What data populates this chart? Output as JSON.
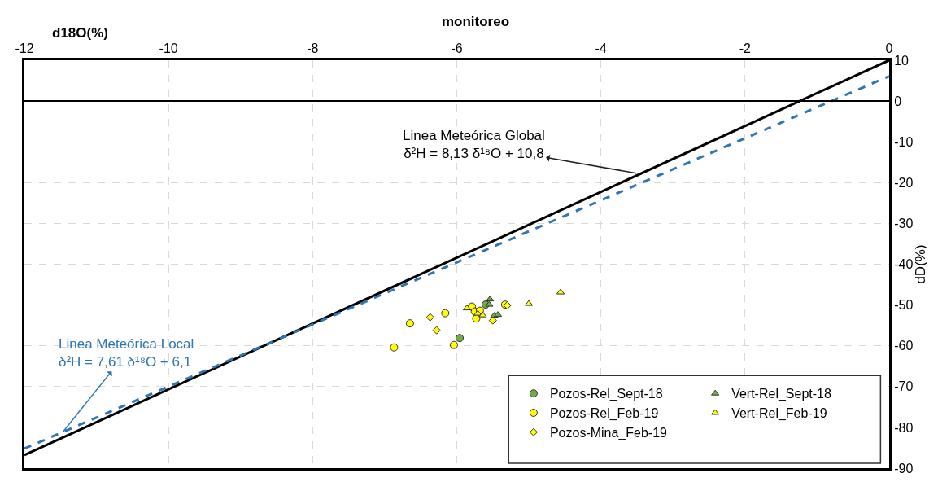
{
  "chart_data": {
    "type": "scatter",
    "title": "monitoreo",
    "xlabel": "d18O(%)",
    "ylabel": "dD(%)",
    "xlim": [
      -12,
      0
    ],
    "xticks": [
      -12,
      -10,
      -8,
      -6,
      -4,
      -2,
      0
    ],
    "ylim": [
      -90,
      10
    ],
    "yticks": [
      -90,
      -80,
      -70,
      -60,
      -50,
      -40,
      -30,
      -20,
      -10,
      0,
      10
    ],
    "grid": true,
    "legend": "bottom right",
    "series": [
      {
        "name": "Pozos-Rel_Sept-18",
        "marker": "circle",
        "color": "#70ad47",
        "x": [
          -5.96,
          -5.6
        ],
        "values": [
          -58.1,
          -49.9
        ]
      },
      {
        "name": "Vert-Rel_Sept-18",
        "marker": "triangle",
        "color": "#70ad47",
        "x": [
          -5.54,
          -5.55,
          -5.48,
          -5.43
        ],
        "values": [
          -48.6,
          -49.9,
          -52.6,
          -52.4
        ]
      },
      {
        "name": "Pozos-Rel_Feb-19",
        "marker": "circle",
        "color": "#ffff00",
        "x": [
          -6.87,
          -6.65,
          -6.16,
          -6.04,
          -5.79,
          -5.75,
          -5.68,
          -5.73,
          -5.33
        ],
        "values": [
          -60.4,
          -54.5,
          -52.0,
          -59.8,
          -50.4,
          -51.6,
          -51.4,
          -53.3,
          -49.9
        ]
      },
      {
        "name": "Vert-Rel_Feb-19",
        "marker": "triangle",
        "color": "#ffff00",
        "x": [
          -5.86,
          -5.71,
          -5.64,
          -5.0,
          -4.56
        ],
        "values": [
          -50.8,
          -52.1,
          -52.5,
          -49.7,
          -46.9
        ]
      },
      {
        "name": "Pozos-Mina_Feb-19",
        "marker": "diamond",
        "color": "#ffff00",
        "x": [
          -6.37,
          -6.28,
          -5.5,
          -5.3
        ],
        "values": [
          -53.0,
          -56.2,
          -53.8,
          -50.1
        ]
      },
      {
        "type": "line",
        "color": "#000000",
        "line_style": "solid",
        "x": [
          -12,
          0
        ],
        "values": [
          -86.8,
          10
        ]
      },
      {
        "type": "line",
        "color": "#2e75b6",
        "line_style": "dashed",
        "x": [
          -12,
          0
        ],
        "values": [
          -85.2,
          6.1
        ]
      }
    ],
    "ref_lines": [
      {
        "axis": "y",
        "value": 0,
        "color": "#000000"
      }
    ],
    "annotations": [
      {
        "text": "Linea Meteórica Global\nδ²H = 8,13 δ¹⁸O + 10,8",
        "x": -3.51,
        "y": -17.7
      },
      {
        "text": "Linea Meteórica Local\nδ²H = 7,61 δ¹⁸O + 6,1",
        "x": -11.47,
        "y": -81.2
      }
    ]
  }
}
